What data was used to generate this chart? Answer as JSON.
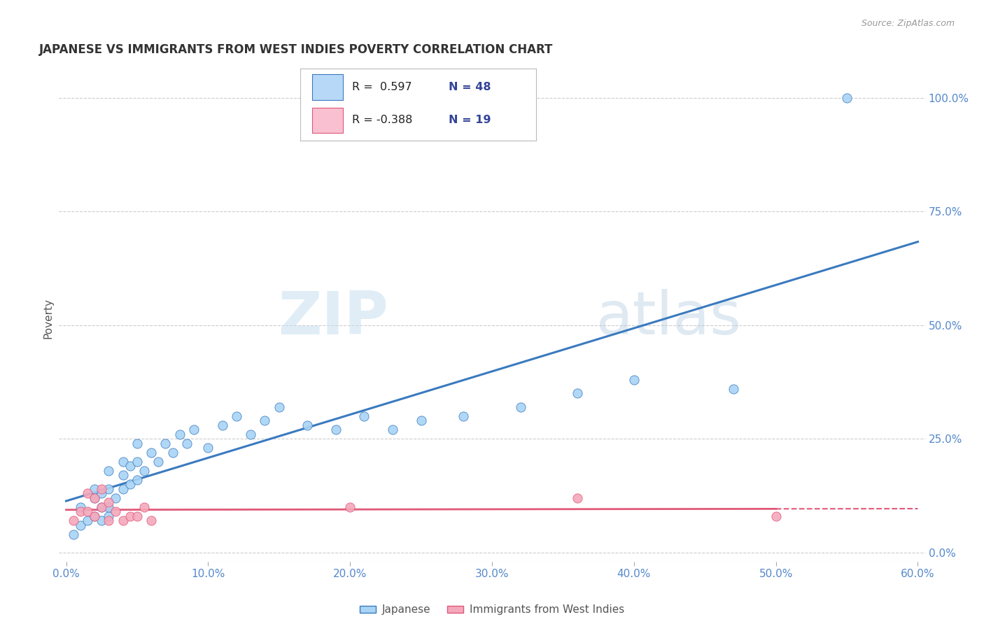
{
  "title": "JAPANESE VS IMMIGRANTS FROM WEST INDIES POVERTY CORRELATION CHART",
  "source": "Source: ZipAtlas.com",
  "ylabel": "Poverty",
  "xlim": [
    -0.005,
    0.605
  ],
  "ylim": [
    -0.02,
    1.05
  ],
  "xticks": [
    0.0,
    0.1,
    0.2,
    0.3,
    0.4,
    0.5,
    0.6
  ],
  "xtick_labels": [
    "0.0%",
    "10.0%",
    "20.0%",
    "30.0%",
    "40.0%",
    "50.0%",
    "60.0%"
  ],
  "yticks_right": [
    0.0,
    0.25,
    0.5,
    0.75,
    1.0
  ],
  "ytick_labels_right": [
    "0.0%",
    "25.0%",
    "50.0%",
    "75.0%",
    "100.0%"
  ],
  "watermark_zip": "ZIP",
  "watermark_atlas": "atlas",
  "japanese_R": 0.597,
  "japanese_N": 48,
  "westindies_R": -0.388,
  "westindies_N": 19,
  "japanese_color": "#a8d4f5",
  "westindies_color": "#f4a8bc",
  "trendline_japanese_color": "#3a7abf",
  "trendline_westindies_color": "#e05878",
  "legend_box_color_japanese": "#b8d8f8",
  "legend_box_color_westindies": "#f8c0d0",
  "japanese_x": [
    0.005,
    0.01,
    0.01,
    0.015,
    0.02,
    0.02,
    0.02,
    0.025,
    0.025,
    0.025,
    0.03,
    0.03,
    0.03,
    0.03,
    0.035,
    0.04,
    0.04,
    0.04,
    0.045,
    0.045,
    0.05,
    0.05,
    0.05,
    0.055,
    0.06,
    0.065,
    0.07,
    0.075,
    0.08,
    0.085,
    0.09,
    0.1,
    0.11,
    0.12,
    0.13,
    0.14,
    0.15,
    0.17,
    0.19,
    0.21,
    0.23,
    0.25,
    0.28,
    0.32,
    0.36,
    0.4,
    0.47,
    0.55
  ],
  "japanese_y": [
    0.04,
    0.06,
    0.1,
    0.07,
    0.08,
    0.12,
    0.14,
    0.07,
    0.1,
    0.13,
    0.08,
    0.1,
    0.14,
    0.18,
    0.12,
    0.14,
    0.17,
    0.2,
    0.15,
    0.19,
    0.16,
    0.2,
    0.24,
    0.18,
    0.22,
    0.2,
    0.24,
    0.22,
    0.26,
    0.24,
    0.27,
    0.23,
    0.28,
    0.3,
    0.26,
    0.29,
    0.32,
    0.28,
    0.27,
    0.3,
    0.27,
    0.29,
    0.3,
    0.32,
    0.35,
    0.38,
    0.36,
    1.0
  ],
  "westindies_x": [
    0.005,
    0.01,
    0.015,
    0.015,
    0.02,
    0.02,
    0.025,
    0.025,
    0.03,
    0.03,
    0.035,
    0.04,
    0.045,
    0.05,
    0.055,
    0.06,
    0.2,
    0.36,
    0.5
  ],
  "westindies_y": [
    0.07,
    0.09,
    0.09,
    0.13,
    0.08,
    0.12,
    0.1,
    0.14,
    0.07,
    0.11,
    0.09,
    0.07,
    0.08,
    0.08,
    0.1,
    0.07,
    0.1,
    0.12,
    0.08
  ],
  "background_color": "#ffffff",
  "grid_color": "#cccccc",
  "title_color": "#333333",
  "axis_label_color": "#555555",
  "tick_color": "#5588cc",
  "tick_color_dark": "#334499"
}
